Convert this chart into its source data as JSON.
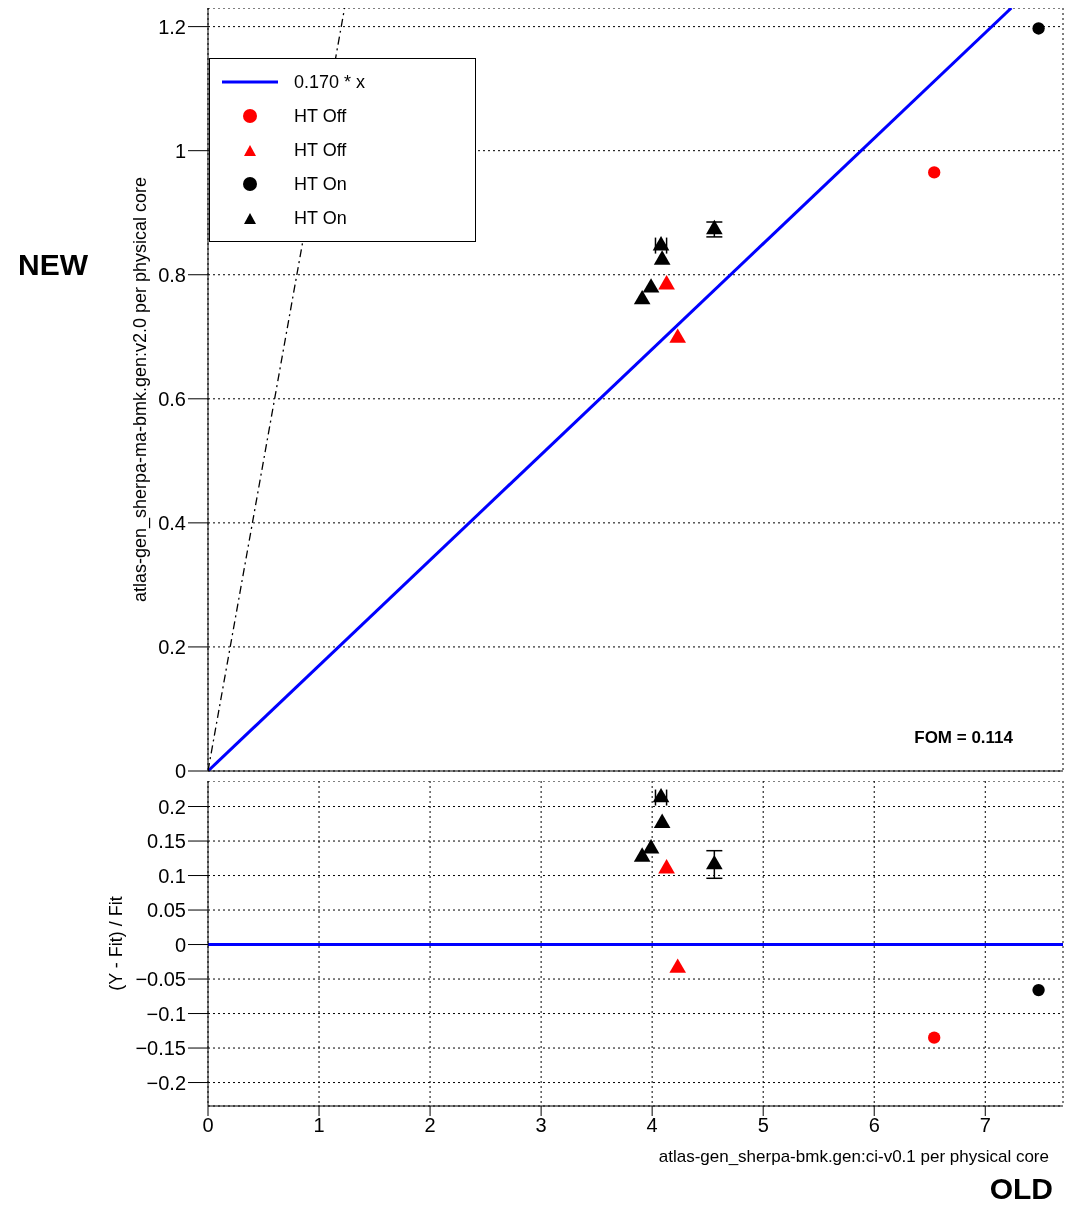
{
  "chart_data": [
    {
      "type": "scatter",
      "ylabel": "atlas-gen_sherpa-ma-bmk.gen:v2.0 per physical core",
      "annotations": [
        "FOM = 0.114",
        "NEW"
      ],
      "xlim": [
        0,
        7.7
      ],
      "xticks": [
        0,
        1,
        2,
        3,
        4,
        5,
        6,
        7
      ],
      "ylim": [
        0,
        1.23
      ],
      "yticks": [
        0,
        0.2,
        0.4,
        0.6,
        0.8,
        1,
        1.2
      ],
      "tick_labels": "y",
      "grid": true,
      "legend": "top left",
      "series": [
        {
          "type": "line",
          "name": "0.170 * x",
          "color": "#0000ff",
          "x": [
            0,
            7.235
          ],
          "values": [
            0,
            1.23
          ],
          "line_style": "solid",
          "marker": "none"
        },
        {
          "type": "line",
          "color": "#000000",
          "x": [
            0,
            1.23
          ],
          "values": [
            0,
            1.23
          ],
          "line_style": "dashed",
          "marker": "none"
        },
        {
          "name": "HT Off",
          "color": "#ff0000",
          "marker": "circle",
          "x": [
            6.54
          ],
          "values": [
            0.965
          ]
        },
        {
          "name": "HT Off",
          "color": "#ff0000",
          "marker": "triangle",
          "x": [
            4.13,
            4.23
          ],
          "values": [
            0.784,
            0.698
          ]
        },
        {
          "name": "HT On",
          "color": "#000000",
          "marker": "circle",
          "x": [
            7.48
          ],
          "values": [
            1.197
          ]
        },
        {
          "name": "HT On",
          "color": "#000000",
          "marker": "triangle",
          "x": [
            3.91,
            3.99,
            4.08,
            4.09,
            4.56
          ],
          "values": [
            0.76,
            0.779,
            0.847,
            0.824,
            0.873
          ],
          "errors": [
            null,
            null,
            null,
            null,
            0.012
          ],
          "xerrors": [
            null,
            null,
            0.05,
            null,
            null
          ]
        }
      ]
    },
    {
      "type": "scatter",
      "xlabel": "atlas-gen_sherpa-bmk.gen:ci-v0.1 per physical core",
      "ylabel": "(Y - Fit) / Fit",
      "annotations": [
        "OLD"
      ],
      "xlim": [
        0,
        7.7
      ],
      "xticks": [
        0,
        1,
        2,
        3,
        4,
        5,
        6,
        7
      ],
      "ylim": [
        -0.234,
        0.237
      ],
      "yticks": [
        {
          "value": -0.2,
          "label": "−0.2"
        },
        {
          "value": -0.15,
          "label": "−0.15"
        },
        {
          "value": -0.1,
          "label": "−0.1"
        },
        {
          "value": -0.05,
          "label": "−0.05"
        },
        0,
        0.05,
        0.1,
        0.15,
        0.2
      ],
      "grid": true,
      "ref_lines": [
        {
          "axis": "y",
          "value": 0,
          "color": "#0000ff"
        }
      ],
      "series": [
        {
          "color": "#ff0000",
          "marker": "circle",
          "x": [
            6.54
          ],
          "values": [
            -0.135
          ]
        },
        {
          "color": "#ff0000",
          "marker": "triangle",
          "x": [
            4.13,
            4.23
          ],
          "values": [
            0.11,
            -0.034
          ]
        },
        {
          "color": "#000000",
          "marker": "circle",
          "x": [
            7.48
          ],
          "values": [
            -0.066
          ]
        },
        {
          "color": "#000000",
          "marker": "triangle",
          "x": [
            3.91,
            3.99,
            4.08,
            4.09,
            4.56
          ],
          "values": [
            0.127,
            0.139,
            0.213,
            0.176,
            0.116
          ],
          "errors": [
            null,
            null,
            null,
            null,
            0.02
          ],
          "xerrors": [
            null,
            null,
            0.05,
            null,
            null
          ]
        }
      ]
    }
  ]
}
